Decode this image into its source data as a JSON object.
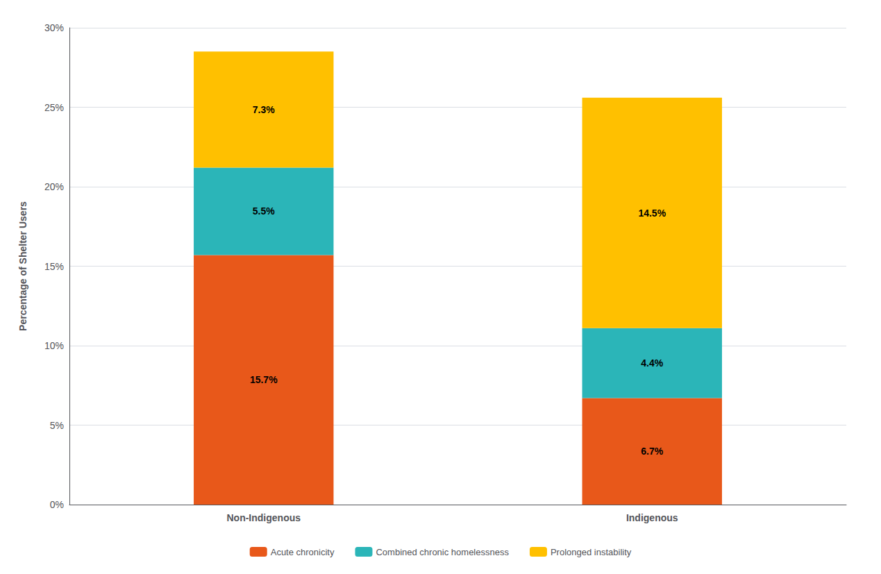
{
  "chart_data": {
    "type": "bar",
    "stacked": true,
    "categories": [
      "Non-Indigenous",
      "Indigenous"
    ],
    "ylabel": "Percentage of Shelter Users",
    "series": [
      {
        "name": "Acute chronicity",
        "color": "#E8581A",
        "values": [
          15.7,
          6.7
        ],
        "value_labels": [
          "15.7%",
          "6.7%"
        ]
      },
      {
        "name": "Combined chronic homelessness",
        "color": "#2BB5B8",
        "values": [
          5.5,
          4.4
        ],
        "value_labels": [
          "5.5%",
          "4.4%"
        ]
      },
      {
        "name": "Prolonged instability",
        "color": "#FFC000",
        "values": [
          7.3,
          14.5
        ],
        "value_labels": [
          "7.3%",
          "14.5%"
        ]
      }
    ],
    "ylim": [
      0,
      30
    ],
    "yticks": [
      {
        "value": 0,
        "label": "0%"
      },
      {
        "value": 5,
        "label": "5%"
      },
      {
        "value": 10,
        "label": "10%"
      },
      {
        "value": 15,
        "label": "15%"
      },
      {
        "value": 20,
        "label": "20%"
      },
      {
        "value": 25,
        "label": "25%"
      },
      {
        "value": 30,
        "label": "30%"
      }
    ],
    "grid": true,
    "legend": "bottom",
    "data_labels": true
  }
}
